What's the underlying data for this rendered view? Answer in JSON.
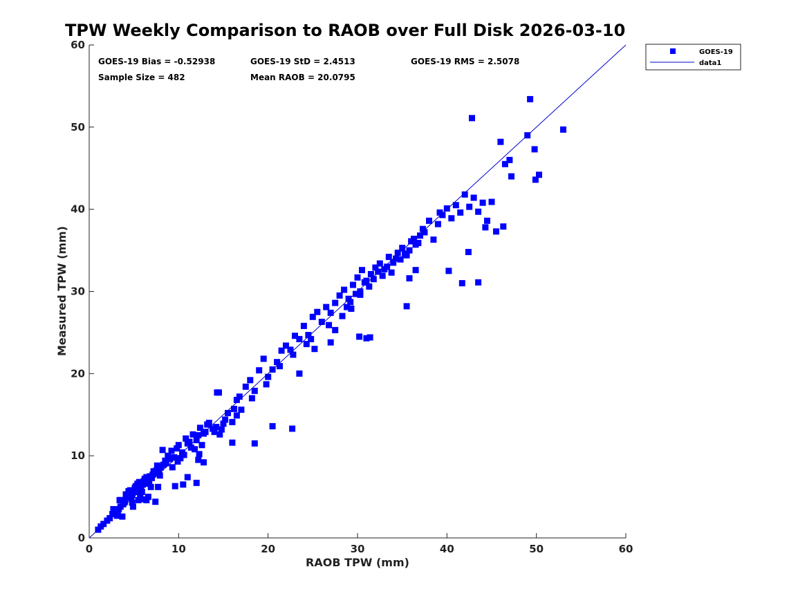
{
  "chart_data": {
    "type": "scatter",
    "title": "TPW Weekly Comparison to RAOB over Full Disk 2026-03-10",
    "xlabel": "RAOB TPW (mm)",
    "ylabel": "Measured TPW (mm)",
    "xlim": [
      0,
      60
    ],
    "ylim": [
      0,
      60
    ],
    "xticks": [
      0,
      10,
      20,
      30,
      40,
      50,
      60
    ],
    "yticks": [
      0,
      10,
      20,
      30,
      40,
      50,
      60
    ],
    "grid": false,
    "legend_position": "outside top-right",
    "colors": {
      "marker": "#0000ff",
      "line": "#0000cc",
      "axes": "#222222"
    },
    "annotations": [
      "GOES-19 Bias = -0.52938",
      "GOES-19 StD = 2.4513",
      "GOES-19 RMS = 2.5078",
      "Sample Size = 482",
      "Mean RAOB = 20.0795"
    ],
    "series": [
      {
        "name": "GOES-19",
        "kind": "scatter",
        "marker": "square",
        "x": [
          1.0,
          1.3,
          1.6,
          2.0,
          2.3,
          2.6,
          3.0,
          3.2,
          3.5,
          3.8,
          3.6,
          4.0,
          4.2,
          4.5,
          4.8,
          5.0,
          5.3,
          5.5,
          5.8,
          6.0,
          6.3,
          6.5,
          6.8,
          7.0,
          7.3,
          7.5,
          7.8,
          8.0,
          8.3,
          8.6,
          9.0,
          4.1,
          4.4,
          4.7,
          5.1,
          5.4,
          5.7,
          6.1,
          6.4,
          6.7,
          7.1,
          3.3,
          3.9,
          4.6,
          5.2,
          5.9,
          6.6,
          7.2,
          7.9,
          8.5,
          3.4,
          4.3,
          5.6,
          6.2,
          6.9,
          7.6,
          8.8,
          9.2,
          9.5,
          9.8,
          10.0,
          10.4,
          10.8,
          11.2,
          11.6,
          12.0,
          12.4,
          12.8,
          13.2,
          9.3,
          9.9,
          10.6,
          11.4,
          12.2,
          13.0,
          13.8,
          10.2,
          11.0,
          11.8,
          12.6,
          13.4,
          14.2,
          14.6,
          15.0,
          15.5,
          16.0,
          16.5,
          17.0,
          14.0,
          14.8,
          15.2,
          16.2,
          16.8,
          17.5,
          18.0,
          18.5,
          19.0,
          19.5,
          20.0,
          20.5,
          21.0,
          21.5,
          22.0,
          22.5,
          23.0,
          23.5,
          24.0,
          24.5,
          25.0,
          25.5,
          26.0,
          26.5,
          27.0,
          27.5,
          28.0,
          28.5,
          29.0,
          29.5,
          30.0,
          30.5,
          31.0,
          31.5,
          32.0,
          32.5,
          33.0,
          33.5,
          34.0,
          34.5,
          35.0,
          35.5,
          36.0,
          36.5,
          37.0,
          37.5,
          38.0,
          28.3,
          28.8,
          29.3,
          29.8,
          30.3,
          30.8,
          31.3,
          31.8,
          32.3,
          32.8,
          33.3,
          33.8,
          34.3,
          34.8,
          35.3,
          35.8,
          36.3,
          36.8,
          37.3,
          38.5,
          39.0,
          39.5,
          40.0,
          40.5,
          41.0,
          41.5,
          42.0,
          42.5,
          43.0,
          43.5,
          44.0,
          44.5,
          45.0,
          46.0,
          46.5,
          47.0,
          49.0,
          49.3,
          49.8,
          50.3,
          53.0,
          42.8,
          43.5,
          8.2,
          10.5,
          12.0,
          14.5,
          18.5,
          20.5,
          22.7,
          30.2,
          31.0,
          31.4,
          27.0,
          23.5,
          24.8,
          16.0,
          12.8,
          12.2,
          11.0,
          9.6,
          4.9,
          5.5,
          6.6,
          7.4,
          3.7,
          4.8,
          5.9,
          6.4,
          7.7,
          2.7,
          3.1,
          35.5,
          35.8,
          36.5,
          39.2,
          40.2,
          41.7,
          42.4,
          44.3,
          45.5,
          46.3,
          47.2,
          49.9,
          30.3,
          29.2,
          27.5,
          26.8,
          25.2,
          24.3,
          22.8,
          21.3,
          19.8,
          18.2,
          16.5,
          14.3,
          12.3
        ],
        "y": [
          1.0,
          1.4,
          1.7,
          2.1,
          2.4,
          2.9,
          3.1,
          3.3,
          3.8,
          4.1,
          4.6,
          4.4,
          4.9,
          5.0,
          5.2,
          5.6,
          5.9,
          6.0,
          6.3,
          6.5,
          6.9,
          7.2,
          7.5,
          7.3,
          7.9,
          8.2,
          8.0,
          8.6,
          8.9,
          9.1,
          9.6,
          5.3,
          5.7,
          4.9,
          6.1,
          6.6,
          5.3,
          6.9,
          7.4,
          6.6,
          7.7,
          3.5,
          4.3,
          5.8,
          6.3,
          5.6,
          6.8,
          8.1,
          7.6,
          9.4,
          4.6,
          5.1,
          6.8,
          7.2,
          6.2,
          8.8,
          10.0,
          10.6,
          9.8,
          10.9,
          11.3,
          10.4,
          12.1,
          11.7,
          12.6,
          11.9,
          13.4,
          12.7,
          13.8,
          8.6,
          9.3,
          10.1,
          11.0,
          12.5,
          12.9,
          13.3,
          9.7,
          11.5,
          10.8,
          11.3,
          14.0,
          13.5,
          12.6,
          13.9,
          15.2,
          14.1,
          16.8,
          15.6,
          12.9,
          13.2,
          14.4,
          15.7,
          17.2,
          18.4,
          19.2,
          17.9,
          20.4,
          21.8,
          19.6,
          20.5,
          21.4,
          22.8,
          23.4,
          22.9,
          24.6,
          24.2,
          25.8,
          24.7,
          26.9,
          27.5,
          26.3,
          28.1,
          27.4,
          28.6,
          29.5,
          30.2,
          29.1,
          30.8,
          31.7,
          32.6,
          31.3,
          32.1,
          32.9,
          33.4,
          32.7,
          34.2,
          33.5,
          34.7,
          35.3,
          34.4,
          36.1,
          35.7,
          36.8,
          37.2,
          38.6,
          27.0,
          28.1,
          27.9,
          29.7,
          30.0,
          31.1,
          30.6,
          31.5,
          32.4,
          31.9,
          33.0,
          32.3,
          34.0,
          33.9,
          34.6,
          35.0,
          36.4,
          35.9,
          37.6,
          36.3,
          38.2,
          39.3,
          40.1,
          38.9,
          40.5,
          39.6,
          41.8,
          40.3,
          41.4,
          39.7,
          40.8,
          38.6,
          40.9,
          48.2,
          45.5,
          46.0,
          49.0,
          53.4,
          47.3,
          44.2,
          49.7,
          51.1,
          31.1,
          10.7,
          6.5,
          6.7,
          17.7,
          11.5,
          13.6,
          13.3,
          24.5,
          24.3,
          24.4,
          23.8,
          20.0,
          24.2,
          11.6,
          9.2,
          9.5,
          7.4,
          6.3,
          3.8,
          4.6,
          5.0,
          4.4,
          2.6,
          4.3,
          4.7,
          4.6,
          6.2,
          3.5,
          2.7,
          28.2,
          31.6,
          32.6,
          39.6,
          32.5,
          31.0,
          34.8,
          37.8,
          37.3,
          37.9,
          44.0,
          43.6,
          29.6,
          28.7,
          25.3,
          25.9,
          23.0,
          23.6,
          22.3,
          20.9,
          18.7,
          17.0,
          14.9,
          17.7,
          10.2
        ]
      },
      {
        "name": "data1",
        "kind": "line",
        "x": [
          0,
          60
        ],
        "y": [
          0,
          60
        ]
      }
    ]
  }
}
